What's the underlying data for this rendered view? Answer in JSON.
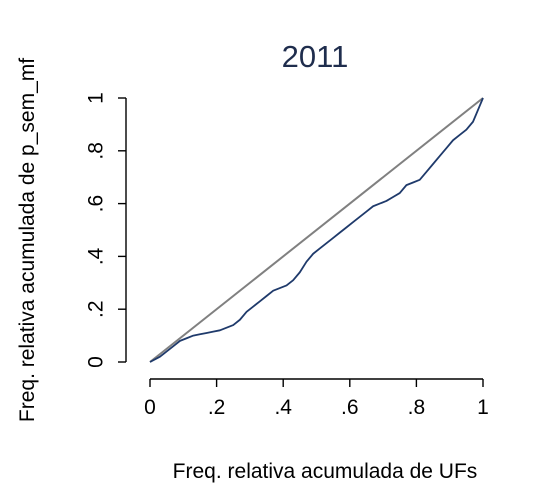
{
  "chart_data": {
    "type": "line",
    "title": "2011",
    "xlabel": "Freq. relativa acumulada de UFs",
    "ylabel": "Freq. relativa acumulada de p_sem_mf",
    "xlim": [
      0,
      1
    ],
    "ylim": [
      0,
      1
    ],
    "x_ticks": [
      0,
      0.2,
      0.4,
      0.6,
      0.8,
      1
    ],
    "x_tick_labels": [
      "0",
      ".2",
      ".4",
      ".6",
      ".8",
      "1"
    ],
    "y_ticks": [
      0,
      0.2,
      0.4,
      0.6,
      0.8,
      1
    ],
    "y_tick_labels": [
      "0",
      ".2",
      ".4",
      ".6",
      ".8",
      "1"
    ],
    "grid": false,
    "series": [
      {
        "color": "#1f3a6b",
        "x": [
          0,
          0.03,
          0.05,
          0.07,
          0.09,
          0.11,
          0.13,
          0.15,
          0.17,
          0.19,
          0.21,
          0.23,
          0.25,
          0.27,
          0.29,
          0.31,
          0.33,
          0.35,
          0.37,
          0.39,
          0.41,
          0.43,
          0.45,
          0.47,
          0.49,
          0.51,
          0.53,
          0.55,
          0.57,
          0.59,
          0.61,
          0.63,
          0.65,
          0.67,
          0.69,
          0.71,
          0.73,
          0.75,
          0.77,
          0.79,
          0.81,
          0.83,
          0.85,
          0.87,
          0.89,
          0.91,
          0.93,
          0.95,
          0.97,
          0.98,
          0.99,
          1.0
        ],
        "y": [
          0,
          0.02,
          0.04,
          0.06,
          0.08,
          0.09,
          0.1,
          0.105,
          0.11,
          0.115,
          0.12,
          0.13,
          0.14,
          0.16,
          0.19,
          0.21,
          0.23,
          0.25,
          0.27,
          0.28,
          0.29,
          0.31,
          0.34,
          0.38,
          0.41,
          0.43,
          0.45,
          0.47,
          0.49,
          0.51,
          0.53,
          0.55,
          0.57,
          0.59,
          0.6,
          0.61,
          0.625,
          0.64,
          0.67,
          0.68,
          0.69,
          0.72,
          0.75,
          0.78,
          0.81,
          0.84,
          0.86,
          0.88,
          0.91,
          0.94,
          0.97,
          1.0
        ]
      },
      {
        "color": "#808080",
        "x": [
          0,
          1
        ],
        "y": [
          0,
          1
        ]
      }
    ]
  }
}
